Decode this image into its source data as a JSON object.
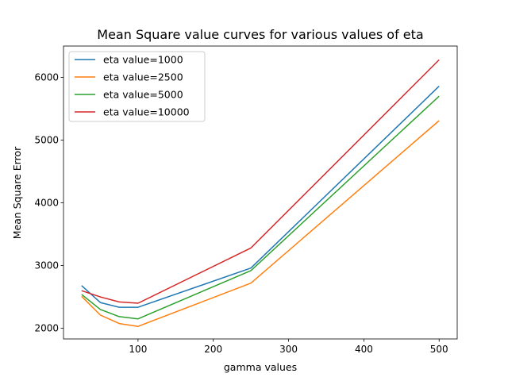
{
  "chart_data": {
    "type": "line",
    "title": "Mean Square value curves for various values of eta",
    "xlabel": "gamma values",
    "ylabel": "Mean Square Error",
    "xlim": [
      1,
      524
    ],
    "ylim": [
      1830,
      6500
    ],
    "xticks": [
      100,
      200,
      300,
      400,
      500
    ],
    "yticks": [
      2000,
      3000,
      4000,
      5000,
      6000
    ],
    "grid": false,
    "legend": "top-left",
    "x": [
      25,
      50,
      75,
      100,
      250,
      500
    ],
    "series": [
      {
        "name": "eta value=1000",
        "color": "#1f77b4",
        "values": [
          2680,
          2410,
          2335,
          2335,
          2960,
          5860
        ]
      },
      {
        "name": "eta value=2500",
        "color": "#ff7f0e",
        "values": [
          2510,
          2210,
          2075,
          2030,
          2720,
          5310
        ]
      },
      {
        "name": "eta value=5000",
        "color": "#2ca02c",
        "values": [
          2540,
          2300,
          2185,
          2150,
          2920,
          5700
        ]
      },
      {
        "name": "eta value=10000",
        "color": "#d62728",
        "values": [
          2600,
          2500,
          2420,
          2400,
          3280,
          6280
        ]
      }
    ]
  }
}
